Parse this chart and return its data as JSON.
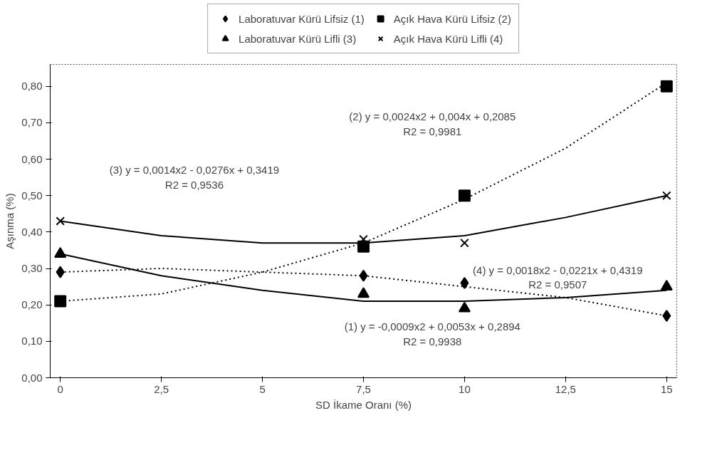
{
  "chart_data": {
    "type": "scatter",
    "xlabel": "SD İkame Oranı (%)",
    "ylabel": "Aşınma (%)",
    "xlim": [
      -0.25,
      15.25
    ],
    "ylim": [
      0,
      0.86
    ],
    "xticks": [
      {
        "value": 0,
        "label": "0"
      },
      {
        "value": 2.5,
        "label": "2,5"
      },
      {
        "value": 5,
        "label": "5"
      },
      {
        "value": 7.5,
        "label": "7,5"
      },
      {
        "value": 10,
        "label": "10"
      },
      {
        "value": 12.5,
        "label": "12,5"
      },
      {
        "value": 15,
        "label": "15"
      }
    ],
    "yticks": [
      {
        "value": 0,
        "label": "0,00"
      },
      {
        "value": 0.1,
        "label": "0,10"
      },
      {
        "value": 0.2,
        "label": "0,20"
      },
      {
        "value": 0.3,
        "label": "0,30"
      },
      {
        "value": 0.4,
        "label": "0,40"
      },
      {
        "value": 0.5,
        "label": "0,50"
      },
      {
        "value": 0.6,
        "label": "0,60"
      },
      {
        "value": 0.7,
        "label": "0,70"
      },
      {
        "value": 0.8,
        "label": "0,80"
      }
    ],
    "grid": false,
    "legend": "top",
    "x": [
      0,
      7.5,
      10,
      15
    ],
    "series": [
      {
        "name": "Laboratuvar Kürü Lifsiz (1)",
        "color": "#000000",
        "marker": "diamond",
        "values": [
          0.29,
          0.28,
          0.26,
          0.17
        ]
      },
      {
        "name": "Açık Hava Kürü Lifsiz (2)",
        "color": "#000000",
        "marker": "square",
        "values": [
          0.21,
          0.36,
          0.5,
          0.8
        ]
      },
      {
        "name": "Laboratuvar Kürü Lifli (3)",
        "color": "#000000",
        "marker": "triangle",
        "values": [
          0.34,
          0.23,
          0.19,
          0.25
        ]
      },
      {
        "name": "Açık Hava Kürü Lifli (4)",
        "color": "#000000",
        "marker": "cross",
        "values": [
          0.43,
          0.38,
          0.37,
          0.5
        ]
      },
      {
        "type": "line",
        "color": "#000000",
        "line_style": "dotted",
        "x": [
          0,
          2.5,
          5,
          7.5,
          10,
          12.5,
          15
        ],
        "values": [
          0.29,
          0.3,
          0.29,
          0.28,
          0.25,
          0.22,
          0.17
        ]
      },
      {
        "type": "line",
        "color": "#000000",
        "line_style": "dotted",
        "x": [
          0,
          2.5,
          5,
          7.5,
          10,
          12.5,
          15
        ],
        "values": [
          0.21,
          0.23,
          0.29,
          0.37,
          0.49,
          0.63,
          0.81
        ]
      },
      {
        "type": "line",
        "color": "#000000",
        "line_style": "solid",
        "x": [
          0,
          2.5,
          5,
          7.5,
          10,
          12.5,
          15
        ],
        "values": [
          0.34,
          0.28,
          0.24,
          0.21,
          0.21,
          0.22,
          0.24
        ]
      },
      {
        "type": "line",
        "color": "#000000",
        "line_style": "solid",
        "x": [
          0,
          2.5,
          5,
          7.5,
          10,
          12.5,
          15
        ],
        "values": [
          0.43,
          0.39,
          0.37,
          0.37,
          0.39,
          0.44,
          0.5
        ]
      }
    ],
    "annotations": [
      "(1) y = -0,0009x2 + 0,0053x + 0,2894\nR2 = 0,9938",
      "(2) y = 0,0024x2 + 0,004x + 0,2085\nR2 = 0,9981",
      "(3) y = 0,0014x2 - 0,0276x + 0,3419\nR2 = 0,9536",
      "(4) y = 0,0018x2 - 0,0221x + 0,4319\nR2 = 0,9507"
    ]
  }
}
